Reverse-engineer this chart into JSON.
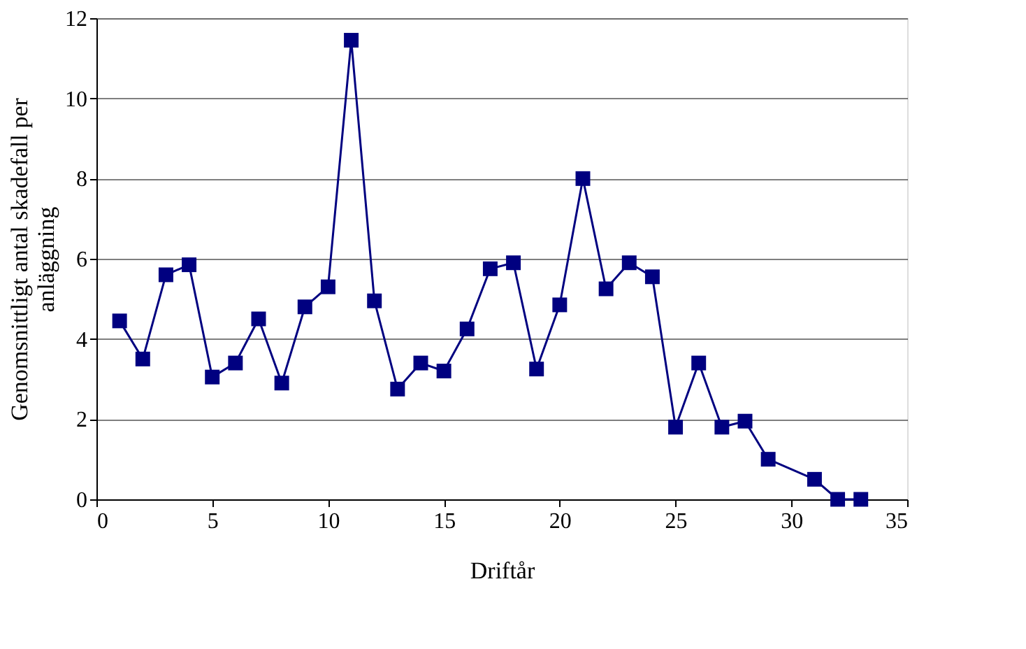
{
  "chart_data": {
    "type": "line",
    "xlabel": "Driftår",
    "ylabel": "Genomsnittligt antal skadefall per anläggning",
    "x": [
      1,
      2,
      3,
      4,
      5,
      6,
      7,
      8,
      9,
      10,
      11,
      12,
      13,
      14,
      15,
      16,
      17,
      18,
      19,
      20,
      21,
      22,
      23,
      24,
      25,
      26,
      27,
      28,
      29,
      31,
      32,
      33
    ],
    "series": [
      {
        "color": "#000080",
        "values": [
          4.45,
          3.5,
          5.6,
          5.85,
          3.05,
          3.4,
          4.5,
          2.9,
          4.8,
          5.3,
          11.45,
          4.95,
          2.75,
          3.4,
          3.2,
          4.25,
          5.75,
          5.9,
          3.25,
          4.85,
          8.0,
          5.25,
          5.9,
          5.55,
          1.8,
          3.4,
          1.8,
          1.95,
          1.0,
          0.5,
          0,
          0
        ]
      }
    ],
    "xlim": [
      0,
      35
    ],
    "xticks": [
      0,
      5,
      10,
      15,
      20,
      25,
      30,
      35
    ],
    "ylim": [
      0,
      12
    ],
    "yticks": [
      0,
      2,
      4,
      6,
      8,
      10,
      12
    ],
    "grid": "y",
    "marker": "square",
    "line_style": "solid"
  }
}
